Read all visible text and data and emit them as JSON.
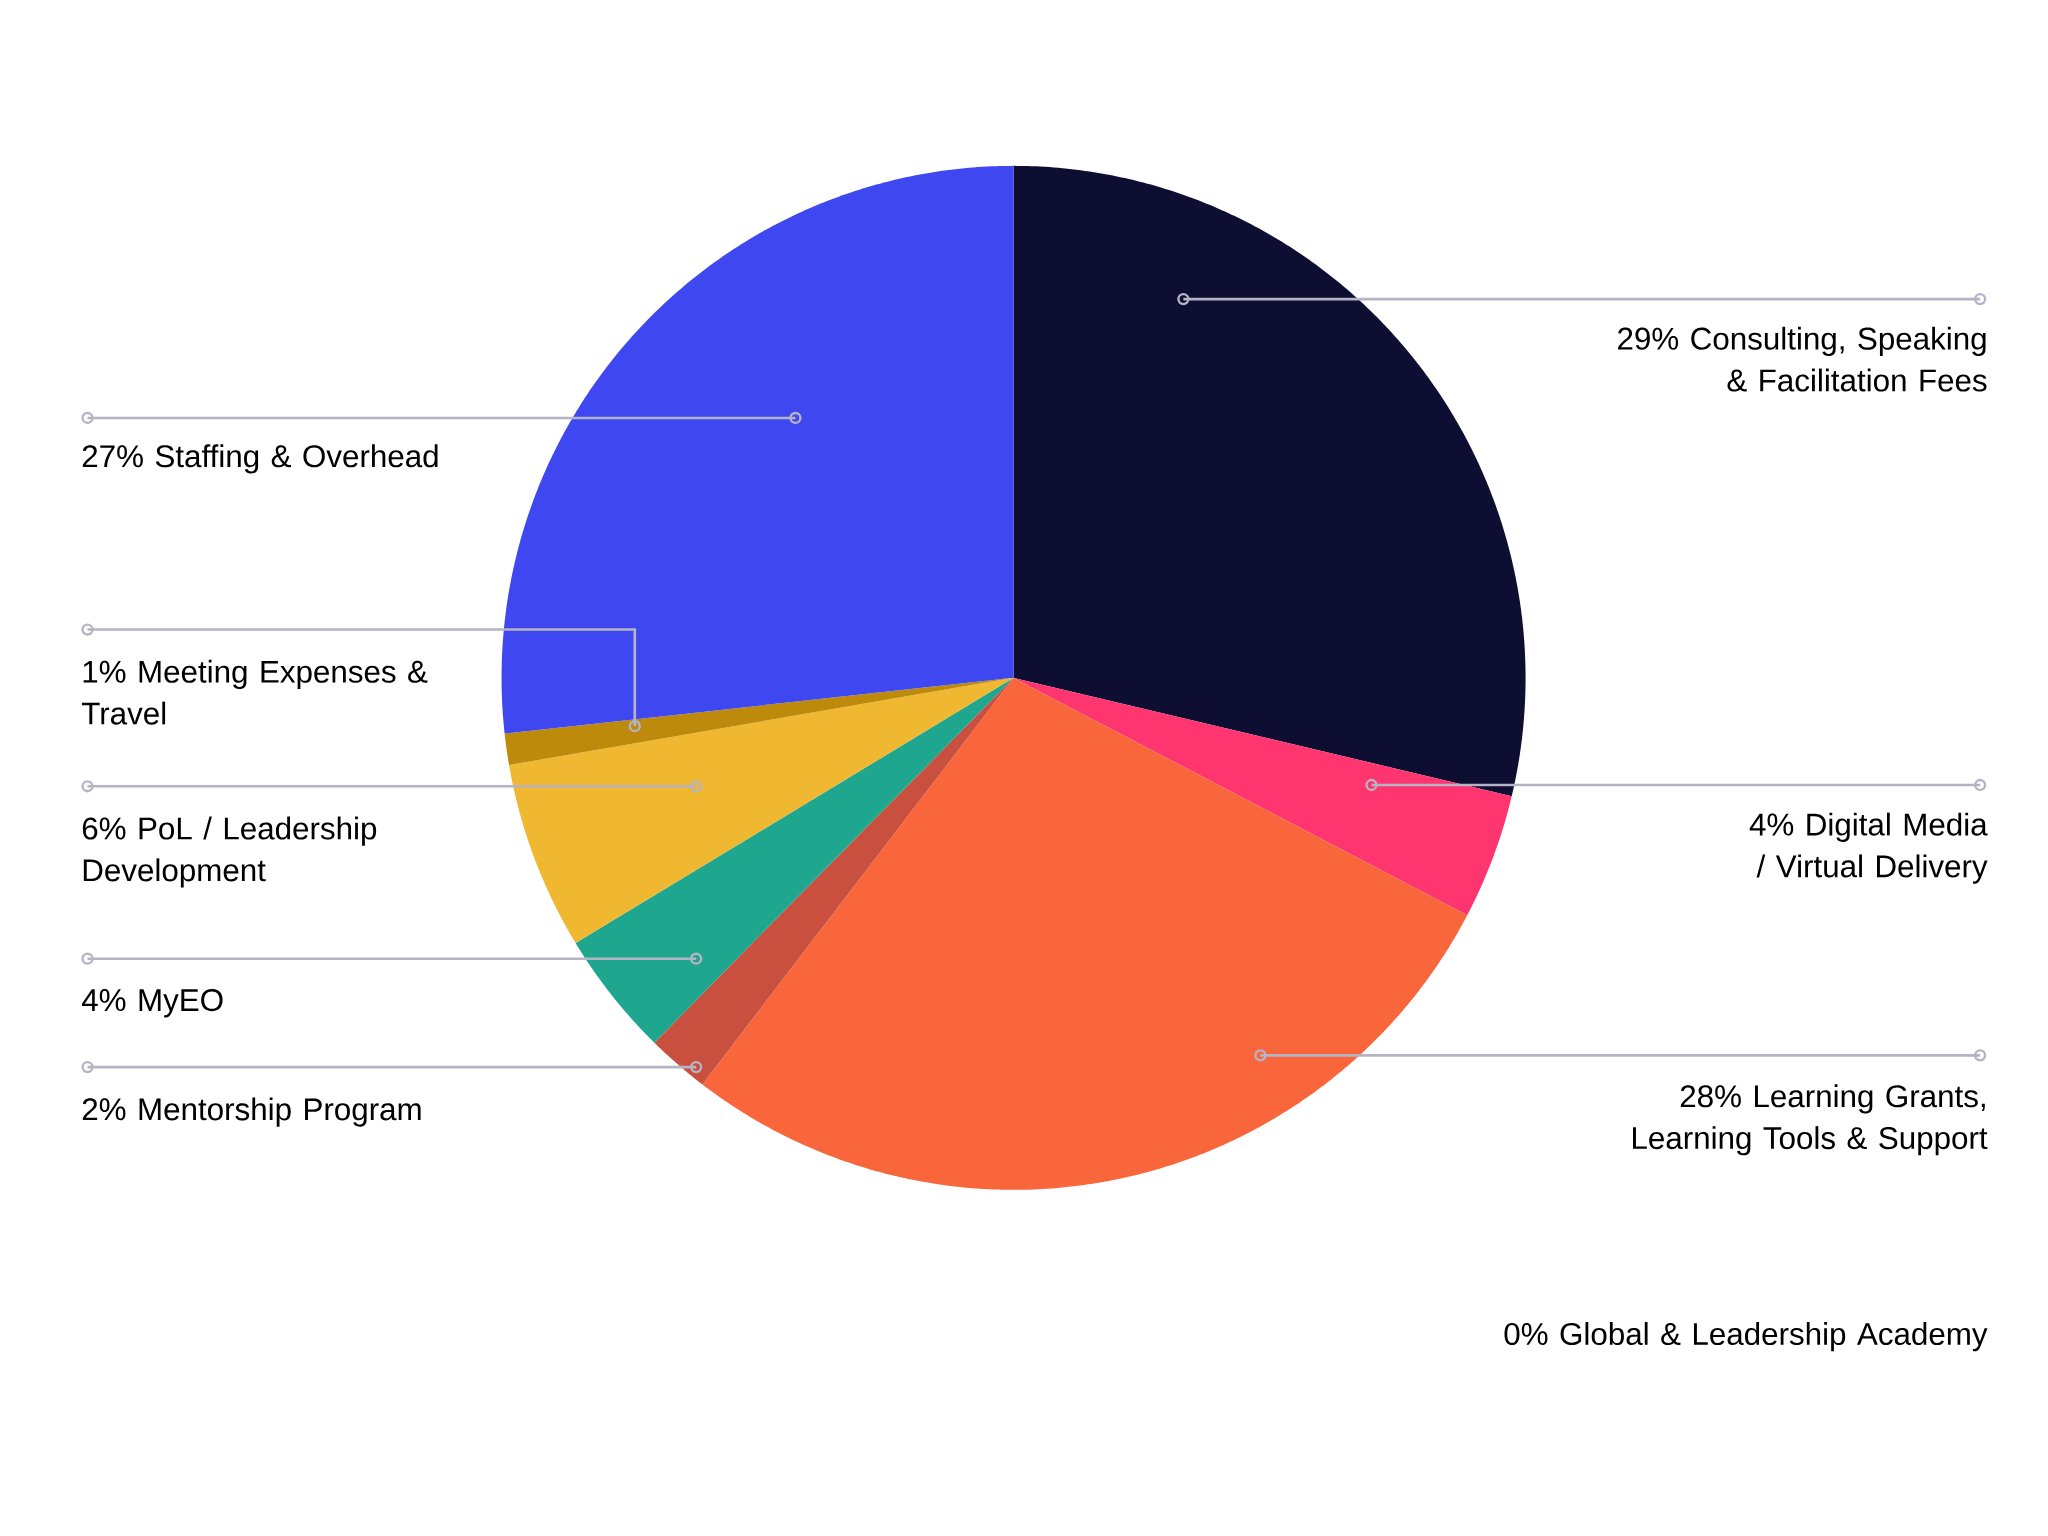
{
  "chart_data": {
    "type": "pie",
    "categories": [
      "Consulting, Speaking & Facilitation Fees",
      "Global & Leadership Academy",
      "Digital Media / Virtual Delivery",
      "Learning Grants, Learning Tools & Support",
      "Mentorship Program",
      "MyEO",
      "PoL / Leadership Development",
      "Meeting Expenses & Travel",
      "Staffing & Overhead"
    ],
    "values": [
      29,
      0,
      4,
      28,
      2,
      4,
      6,
      1,
      27
    ],
    "value_labels": [
      "29%",
      "0%",
      "4%",
      "28%",
      "2%",
      "4%",
      "6%",
      "1%",
      "27%"
    ],
    "colors": [
      "#0e0e33",
      "#1a1a4a",
      "#ff3570",
      "#f9663c",
      "#c94f3f",
      "#1fa68e",
      "#f0b730",
      "#bd8a0c",
      "#3f48f0"
    ]
  }
}
